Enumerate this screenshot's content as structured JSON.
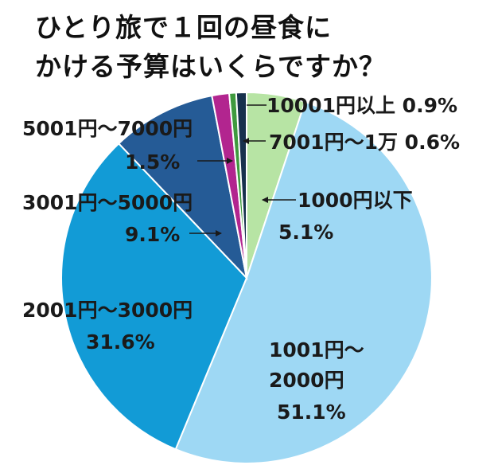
{
  "title_lines": [
    "ひとり旅で１回の昼食に",
    "かける予算はいくらですか？"
  ],
  "chart_data": {
    "type": "pie",
    "title": "ひとり旅で１回の昼食にかける予算はいくらですか？",
    "start": "12 o'clock",
    "direction": "clockwise",
    "slices": [
      {
        "label": "1000円以下",
        "value": 5.1,
        "value_label": "5.1%",
        "color": "#b7e4a4"
      },
      {
        "label": "1001円〜2000円",
        "value": 51.1,
        "value_label": "51.1%",
        "color": "#9ed8f4"
      },
      {
        "label": "2001円〜3000円",
        "value": 31.6,
        "value_label": "31.6%",
        "color": "#129bd6"
      },
      {
        "label": "3001円〜5000円",
        "value": 9.1,
        "value_label": "9.1%",
        "color": "#255b96"
      },
      {
        "label": "5001円〜7000円",
        "value": 1.5,
        "value_label": "1.5%",
        "color": "#b2258f"
      },
      {
        "label": "7001円〜1万",
        "value": 0.6,
        "value_label": "0.6%",
        "color": "#3f9a3e"
      },
      {
        "label": "10001円以上",
        "value": 0.9,
        "value_label": "0.9%",
        "color": "#17314d"
      }
    ],
    "labels": {
      "s0_line1": "1000円以下",
      "s0_line2": "5.1%",
      "s1_line1": "1001円〜",
      "s1_line2": "2000円",
      "s1_line3": "51.1%",
      "s2_line1": "2001円〜3000円",
      "s2_line2": "31.6%",
      "s3_line1": "3001円〜5000円",
      "s3_line2": "9.1%",
      "s4_line1": "5001円〜7000円",
      "s4_line2": "1.5%",
      "s5_line1": "7001円〜1万 0.6%",
      "s6_line1": "10001円以上 0.9%"
    }
  }
}
